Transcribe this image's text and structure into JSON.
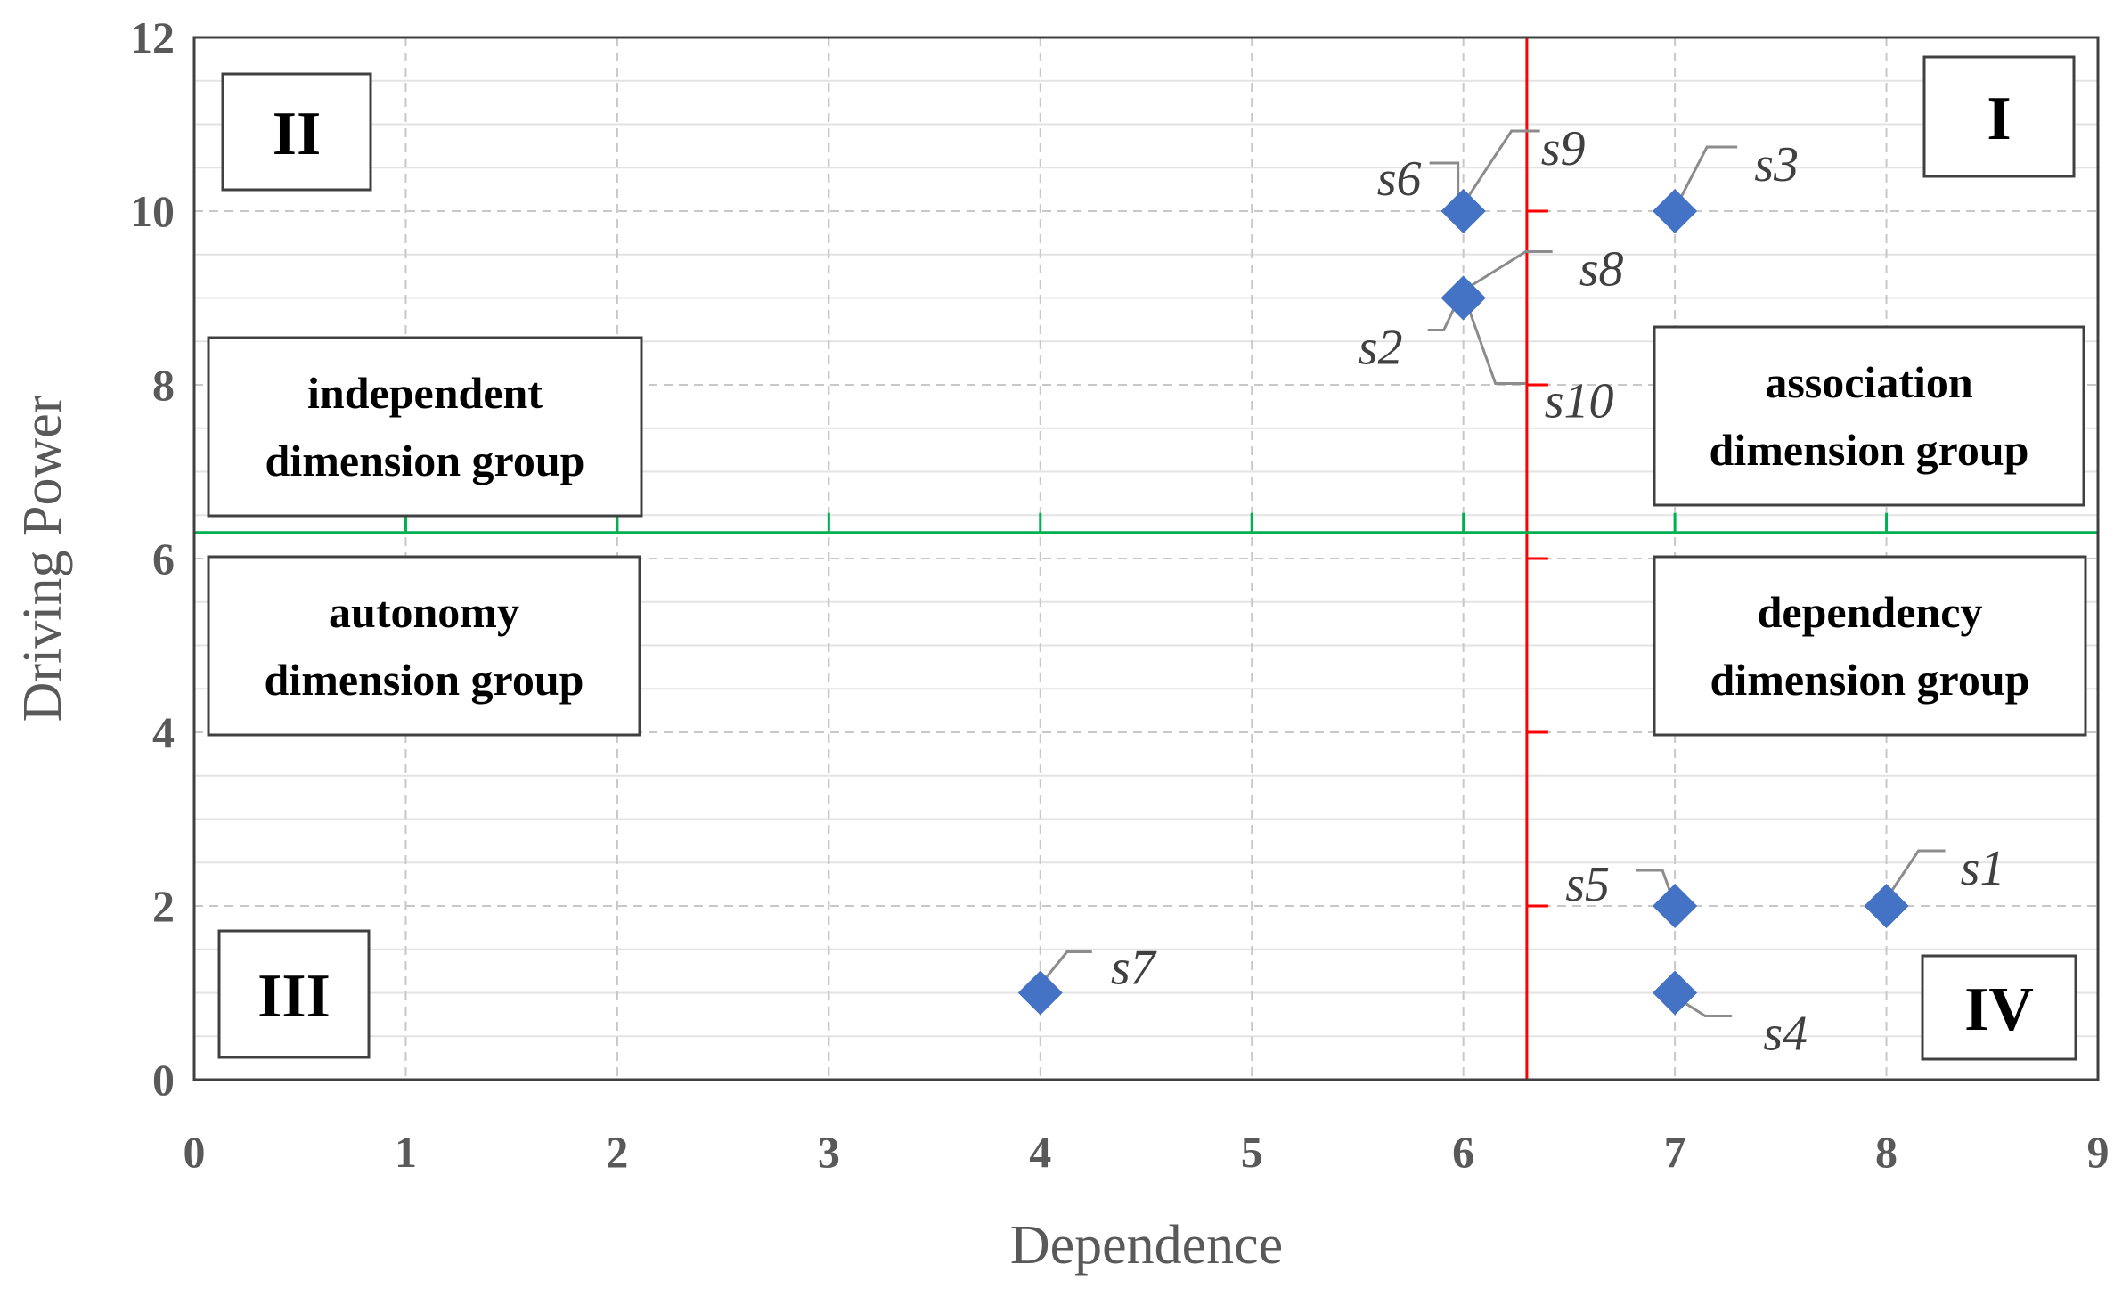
{
  "chart_data": {
    "type": "scatter",
    "title": "",
    "xlabel": "Dependence",
    "ylabel": "Driving Power",
    "xlim": [
      0,
      9
    ],
    "ylim": [
      0,
      12
    ],
    "x_ticks": [
      "0",
      "1",
      "2",
      "3",
      "4",
      "5",
      "6",
      "7",
      "8",
      "9"
    ],
    "y_ticks": [
      "0",
      "2",
      "4",
      "6",
      "8",
      "10",
      "12"
    ],
    "grid": true,
    "points": [
      {
        "label": "s1",
        "x": 8,
        "y": 2
      },
      {
        "label": "s2",
        "x": 6,
        "y": 9
      },
      {
        "label": "s3",
        "x": 7,
        "y": 10
      },
      {
        "label": "s4",
        "x": 7,
        "y": 1
      },
      {
        "label": "s5",
        "x": 7,
        "y": 2
      },
      {
        "label": "s6",
        "x": 6,
        "y": 10
      },
      {
        "label": "s7",
        "x": 4,
        "y": 1
      },
      {
        "label": "s8",
        "x": 6,
        "y": 9
      },
      {
        "label": "s9",
        "x": 6,
        "y": 10
      },
      {
        "label": "s10",
        "x": 6,
        "y": 9
      }
    ],
    "marker_color": "#4472C4",
    "divider_vertical": {
      "x": 6.3,
      "color": "#FF0000"
    },
    "divider_horizontal": {
      "y": 6.3,
      "color": "#00B050"
    },
    "quadrants": {
      "q1": "I",
      "q2": "II",
      "q3": "III",
      "q4": "IV"
    },
    "groups": {
      "independent": [
        "independent",
        "dimension group"
      ],
      "association": [
        "association",
        "dimension group"
      ],
      "autonomy": [
        "autonomy",
        "dimension group"
      ],
      "dependency": [
        "dependency",
        "dimension group"
      ]
    }
  }
}
